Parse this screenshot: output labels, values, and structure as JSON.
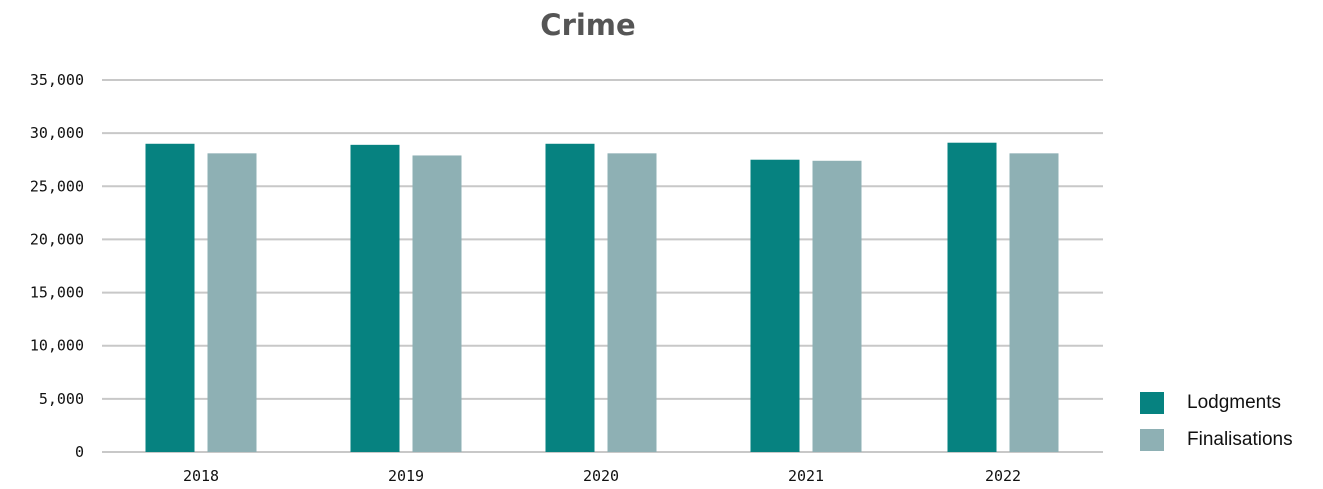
{
  "chart_data": {
    "type": "bar",
    "title": "Crime",
    "categories": [
      "2018",
      "2019",
      "2020",
      "2021",
      "2022"
    ],
    "series": [
      {
        "name": "Lodgments",
        "color": "#068280",
        "values": [
          29000,
          28900,
          29000,
          27500,
          29100
        ]
      },
      {
        "name": "Finalisations",
        "color": "#8eb0b4",
        "values": [
          28100,
          27900,
          28100,
          27400,
          28100
        ]
      }
    ],
    "ylim": [
      0,
      35000
    ],
    "yticks": [
      0,
      5000,
      10000,
      15000,
      20000,
      25000,
      30000,
      35000
    ],
    "ytick_labels": [
      "0",
      "5,000",
      "10,000",
      "15,000",
      "20,000",
      "25,000",
      "30,000",
      "35,000"
    ],
    "xlabel": "",
    "ylabel": "",
    "grid": true,
    "legend_position": "bottom-right"
  }
}
